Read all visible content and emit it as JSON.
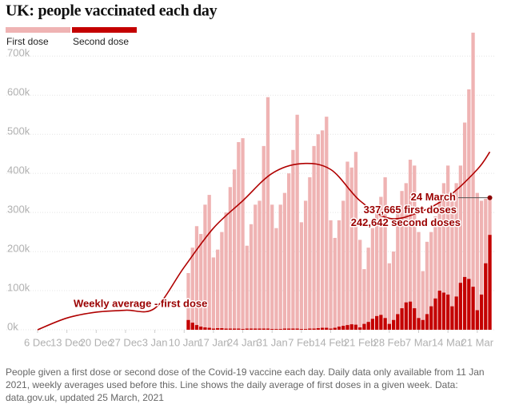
{
  "chart_data": {
    "type": "bar",
    "title": "UK: people vaccinated each day",
    "note": "People given a first dose or second dose of the Covid-19 vaccine each day. Daily data only available from 11 Jan 2021, weekly averages used before this. Line shows the daily average of first doses in a given week. Data: data.gov.uk, updated 25 March, 2021",
    "x": [
      36,
      37,
      38,
      39,
      40,
      41,
      42,
      43,
      44,
      45,
      46,
      47,
      48,
      49,
      50,
      51,
      52,
      53,
      54,
      55,
      56,
      57,
      58,
      59,
      60,
      61,
      62,
      63,
      64,
      65,
      66,
      67,
      68,
      69,
      70,
      71,
      72,
      73,
      74,
      75,
      76,
      77,
      78,
      79,
      80,
      81,
      82,
      83,
      84,
      85,
      86,
      87,
      88,
      89,
      90,
      91,
      92,
      93,
      94,
      95,
      96,
      97,
      98,
      99,
      100,
      101,
      102,
      103,
      104,
      105,
      106,
      107,
      108
    ],
    "series": [
      {
        "name": "First dose",
        "color": "#efb3b3",
        "values": [
          145000,
          210000,
          265000,
          245000,
          320000,
          345000,
          185000,
          205000,
          250000,
          300000,
          365000,
          410000,
          480000,
          490000,
          215000,
          270000,
          320000,
          330000,
          470000,
          595000,
          320000,
          260000,
          320000,
          350000,
          400000,
          460000,
          550000,
          275000,
          330000,
          390000,
          470000,
          500000,
          510000,
          545000,
          280000,
          235000,
          280000,
          330000,
          430000,
          415000,
          455000,
          230000,
          155000,
          210000,
          260000,
          300000,
          340000,
          390000,
          170000,
          200000,
          300000,
          355000,
          375000,
          435000,
          420000,
          250000,
          150000,
          225000,
          250000,
          290000,
          330000,
          375000,
          420000,
          330000,
          375000,
          420000,
          530000,
          615000,
          760000,
          350000,
          330000,
          335000,
          337665
        ]
      },
      {
        "name": "Second dose",
        "color": "#c40000",
        "values": [
          25000,
          18000,
          12000,
          8000,
          6000,
          5000,
          3000,
          4000,
          4000,
          3000,
          3000,
          3000,
          3000,
          2000,
          3000,
          3000,
          3000,
          3000,
          3000,
          3000,
          2000,
          2000,
          2000,
          3000,
          3000,
          3000,
          3000,
          2000,
          2000,
          3000,
          3000,
          4000,
          5000,
          5000,
          3000,
          5000,
          8000,
          10000,
          12000,
          14000,
          13000,
          6000,
          15000,
          20000,
          28000,
          35000,
          38000,
          30000,
          15000,
          25000,
          40000,
          55000,
          70000,
          72000,
          55000,
          30000,
          25000,
          40000,
          60000,
          80000,
          100000,
          95000,
          90000,
          60000,
          85000,
          120000,
          135000,
          130000,
          110000,
          50000,
          90000,
          170000,
          242642
        ]
      }
    ],
    "lines": [
      {
        "name": "Weekly average - first dose",
        "color": "#b00000",
        "x": [
          0,
          7,
          14,
          21,
          28,
          35,
          42,
          49,
          56,
          63,
          70,
          77,
          84,
          91,
          98,
          105,
          108
        ],
        "values": [
          0,
          30000,
          45000,
          50000,
          55000,
          160000,
          260000,
          330000,
          400000,
          425000,
          410000,
          330000,
          285000,
          300000,
          340000,
          410000,
          455000
        ]
      }
    ],
    "annotations": [
      {
        "text": "24 March"
      },
      {
        "text": "337,665 first doses"
      },
      {
        "text": "242,642 second doses"
      }
    ],
    "xlim": [
      0,
      110
    ],
    "xticks": [
      {
        "value": 0,
        "label": "6 Dec"
      },
      {
        "value": 7,
        "label": "13 Dec"
      },
      {
        "value": 14,
        "label": "20 Dec"
      },
      {
        "value": 21,
        "label": "27 Dec"
      },
      {
        "value": 28,
        "label": "3 Jan"
      },
      {
        "value": 35,
        "label": "10 Jan"
      },
      {
        "value": 42,
        "label": "17 Jan"
      },
      {
        "value": 49,
        "label": "24 Jan"
      },
      {
        "value": 56,
        "label": "31 Jan"
      },
      {
        "value": 63,
        "label": "7 Feb"
      },
      {
        "value": 70,
        "label": "14 Feb"
      },
      {
        "value": 77,
        "label": "21 Feb"
      },
      {
        "value": 84,
        "label": "28 Feb"
      },
      {
        "value": 91,
        "label": "7 Mar"
      },
      {
        "value": 98,
        "label": "14 Mar"
      },
      {
        "value": 105,
        "label": "21 Mar"
      }
    ],
    "ylim": [
      0,
      770000
    ],
    "yticks": [
      {
        "value": 0,
        "label": "0k"
      },
      {
        "value": 100000,
        "label": "100k"
      },
      {
        "value": 200000,
        "label": "200k"
      },
      {
        "value": 300000,
        "label": "300k"
      },
      {
        "value": 400000,
        "label": "400k"
      },
      {
        "value": 500000,
        "label": "500k"
      },
      {
        "value": 600000,
        "label": "600k"
      },
      {
        "value": 700000,
        "label": "700k"
      }
    ],
    "grid": true
  }
}
